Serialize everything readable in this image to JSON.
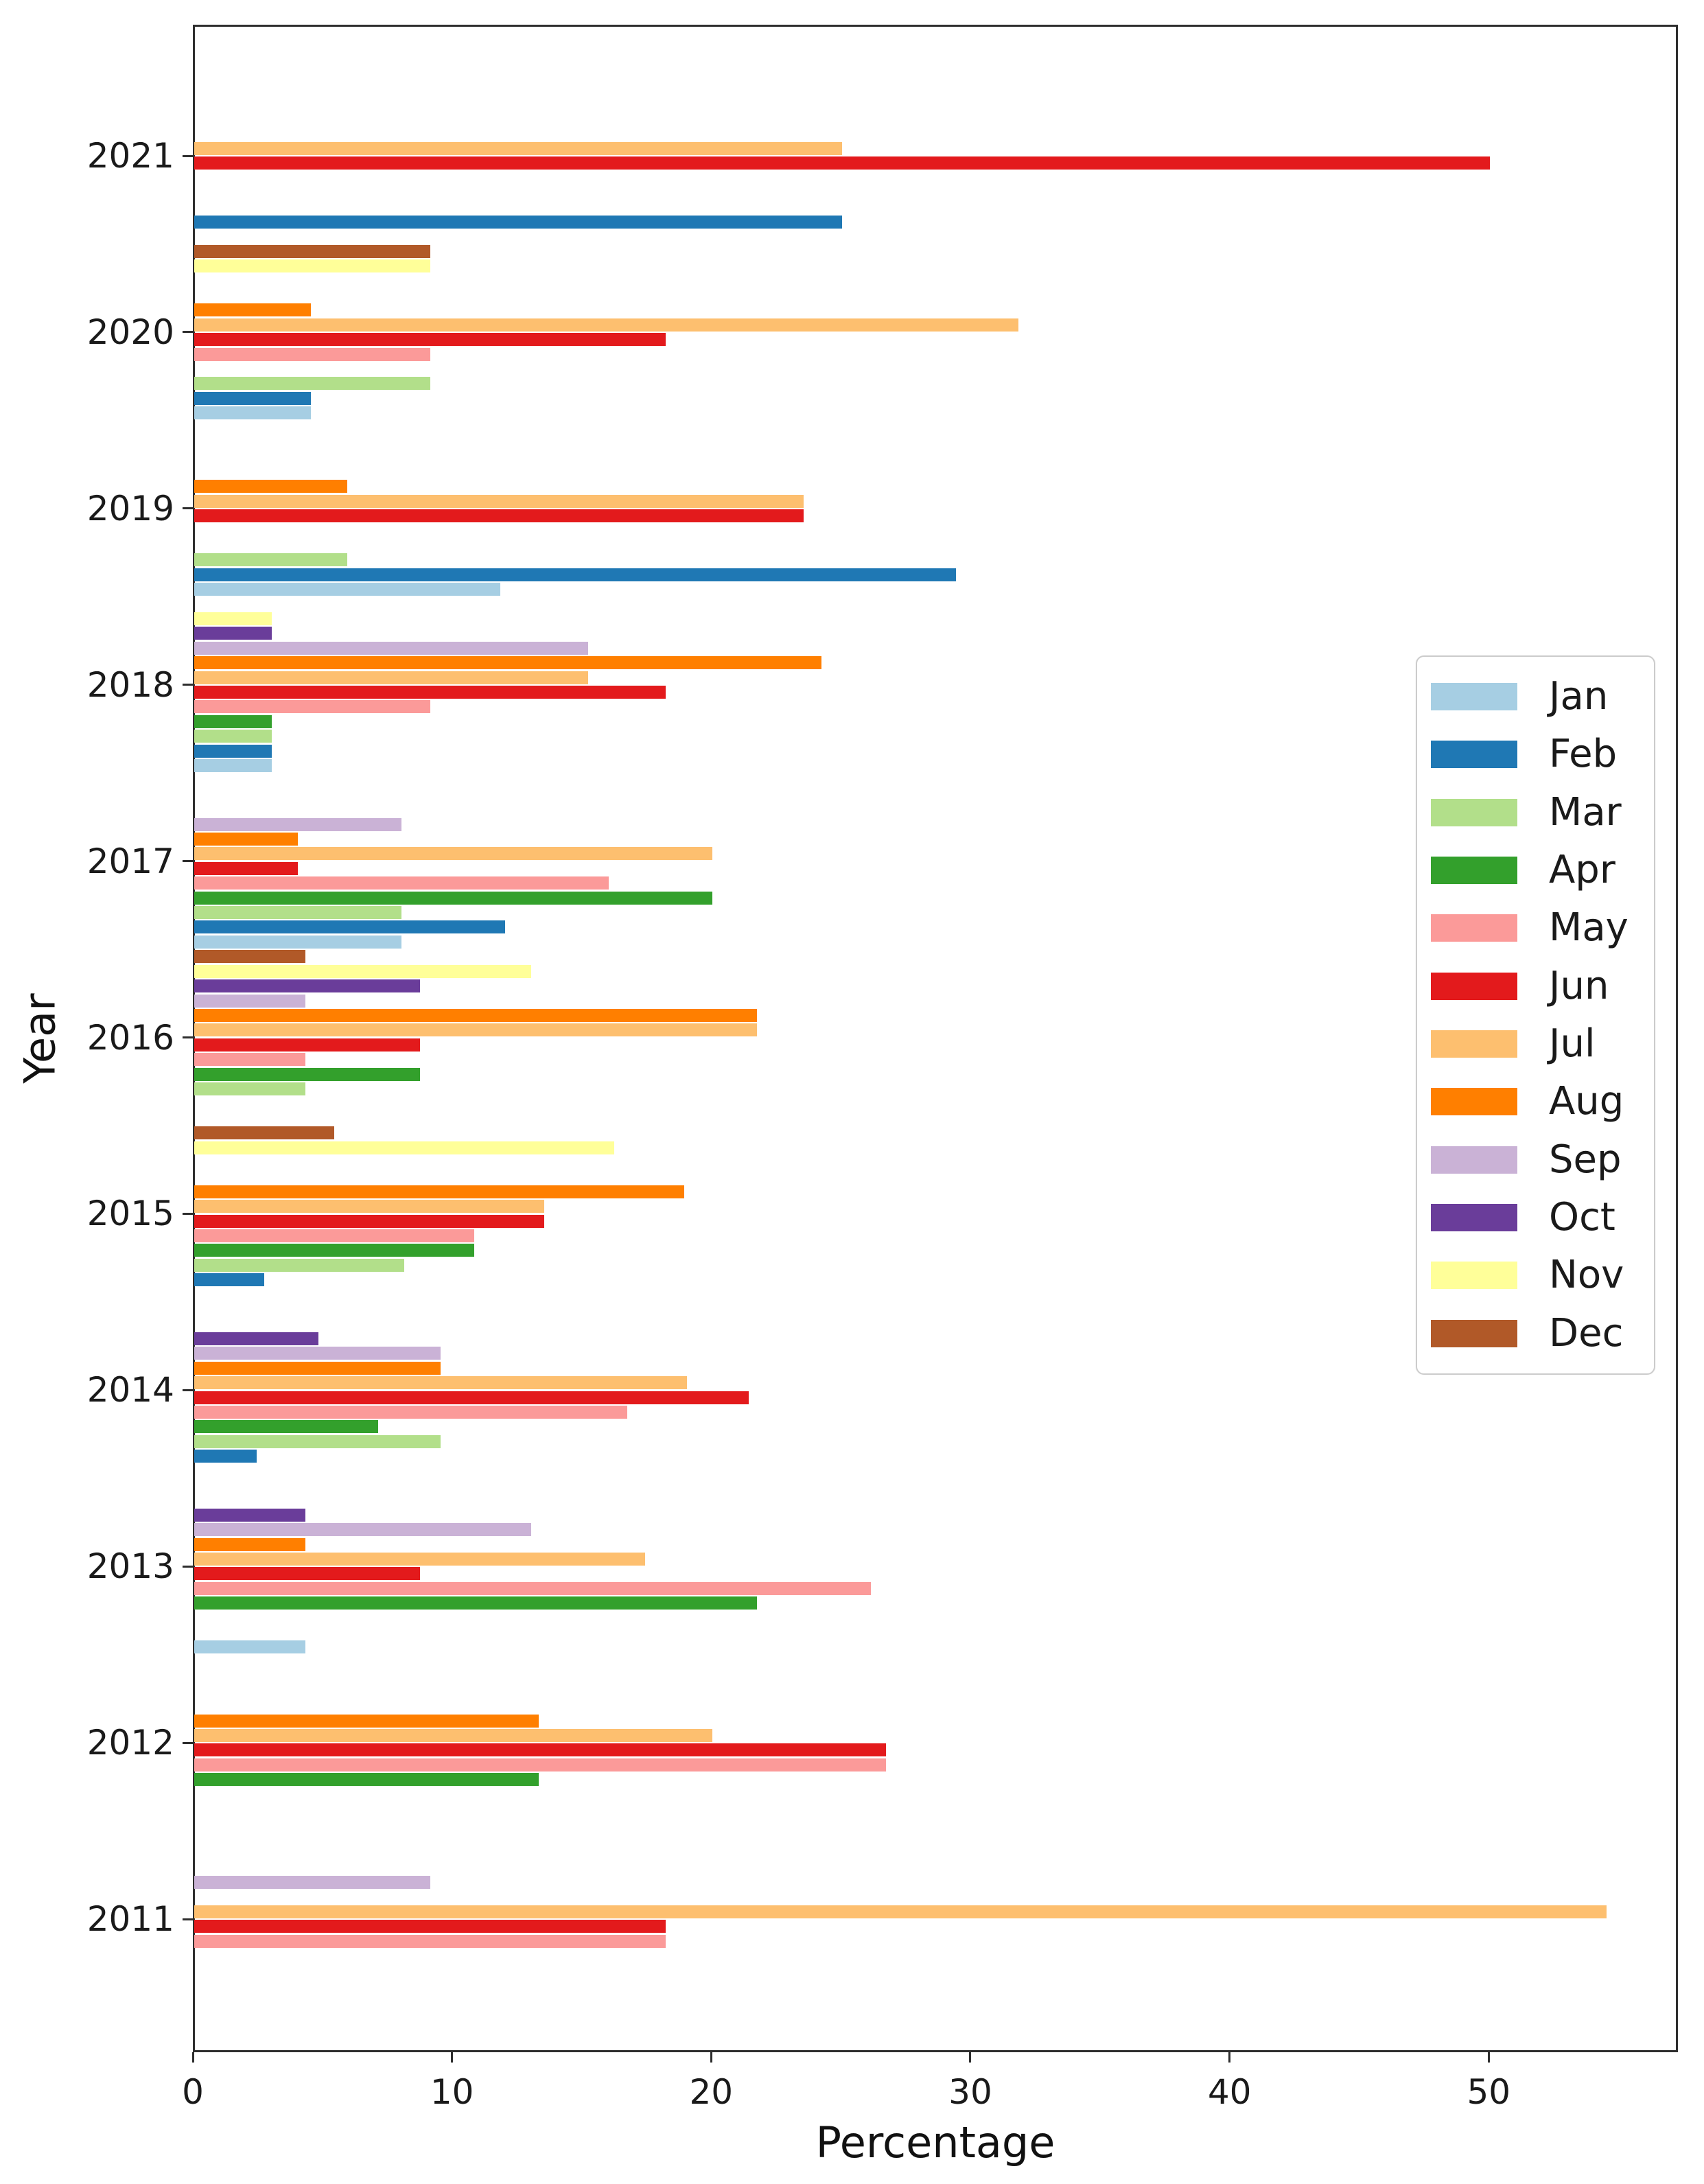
{
  "figure": {
    "title": "",
    "xlabel": "Percentage",
    "ylabel": "Year",
    "background_color": "#ffffff",
    "spine_color": "#2e2e2e",
    "text_color": "#1a1a1a"
  },
  "chart_data": {
    "type": "bar",
    "orientation": "horizontal",
    "title": "",
    "xlabel": "Percentage",
    "ylabel": "Year",
    "grid": false,
    "xlim": [
      0,
      57.3
    ],
    "x_ticks": [
      0,
      10,
      20,
      30,
      40,
      50
    ],
    "categories_top_to_bottom": [
      "2021",
      "2020",
      "2019",
      "2018",
      "2017",
      "2016",
      "2015",
      "2014",
      "2013",
      "2012",
      "2011"
    ],
    "group_order_note": "Within each year group bars run Dec at top to Jan at bottom; missing months have no bar",
    "legend_position": "center right",
    "legend_entries_top_to_bottom": [
      "Jan",
      "Feb",
      "Mar",
      "Apr",
      "May",
      "Jun",
      "Jul",
      "Aug",
      "Sep",
      "Oct",
      "Nov",
      "Dec"
    ],
    "series": [
      {
        "name": "Jan",
        "color": "#a6cee3",
        "values": [
          null,
          4.5,
          11.8,
          3.0,
          8.0,
          null,
          null,
          null,
          4.3,
          null,
          null
        ]
      },
      {
        "name": "Feb",
        "color": "#1f78b4",
        "values": [
          25.0,
          4.5,
          29.4,
          3.0,
          12.0,
          null,
          2.7,
          2.4,
          null,
          null,
          null
        ]
      },
      {
        "name": "Mar",
        "color": "#b2df8a",
        "values": [
          null,
          9.1,
          5.9,
          3.0,
          8.0,
          4.3,
          8.1,
          9.5,
          null,
          null,
          null
        ]
      },
      {
        "name": "Apr",
        "color": "#33a02c",
        "values": [
          null,
          null,
          null,
          3.0,
          20.0,
          8.7,
          10.8,
          7.1,
          21.7,
          13.3,
          null
        ]
      },
      {
        "name": "May",
        "color": "#fb9a99",
        "values": [
          null,
          9.1,
          null,
          9.1,
          16.0,
          4.3,
          10.8,
          16.7,
          26.1,
          26.7,
          18.2
        ]
      },
      {
        "name": "Jun",
        "color": "#e31a1c",
        "values": [
          50.0,
          18.2,
          23.5,
          18.2,
          4.0,
          8.7,
          13.5,
          21.4,
          8.7,
          26.7,
          18.2
        ]
      },
      {
        "name": "Jul",
        "color": "#fdbf6f",
        "values": [
          25.0,
          31.8,
          23.5,
          15.2,
          20.0,
          21.7,
          13.5,
          19.0,
          17.4,
          20.0,
          54.5
        ]
      },
      {
        "name": "Aug",
        "color": "#ff7f00",
        "values": [
          null,
          4.5,
          5.9,
          24.2,
          4.0,
          21.7,
          18.9,
          9.5,
          4.3,
          13.3,
          null
        ]
      },
      {
        "name": "Sep",
        "color": "#cab2d6",
        "values": [
          null,
          null,
          null,
          15.2,
          8.0,
          4.3,
          null,
          9.5,
          13.0,
          null,
          9.1
        ]
      },
      {
        "name": "Oct",
        "color": "#6a3d9a",
        "values": [
          null,
          null,
          null,
          3.0,
          null,
          8.7,
          null,
          4.8,
          4.3,
          null,
          null
        ]
      },
      {
        "name": "Nov",
        "color": "#ffff99",
        "values": [
          null,
          9.1,
          null,
          3.0,
          null,
          13.0,
          16.2,
          null,
          null,
          null,
          null
        ]
      },
      {
        "name": "Dec",
        "color": "#b15928",
        "values": [
          null,
          9.1,
          null,
          null,
          null,
          4.3,
          5.4,
          null,
          null,
          null,
          null
        ]
      }
    ]
  }
}
